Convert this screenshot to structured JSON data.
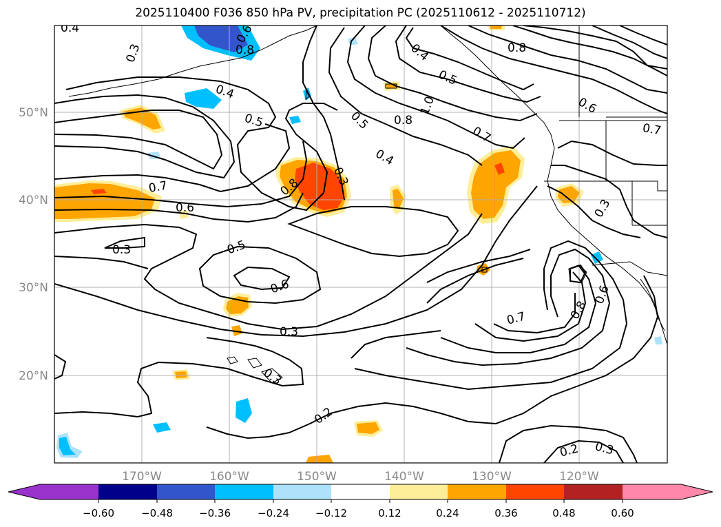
{
  "title": "2025110400 F036 850 hPa PV, precipitation PC (2025110612 - 2025110712)",
  "colors": {
    "gridline": "#b0b0b0",
    "contour": "#000000",
    "tick_label": "#888888"
  },
  "lat_labels": [
    "50°N",
    "40°N",
    "30°N",
    "20°N"
  ],
  "lon_labels": [
    "170°W",
    "160°W",
    "150°W",
    "140°W",
    "130°W",
    "120°W"
  ],
  "colorbar": {
    "colors": [
      "#9933cc",
      "#00008b",
      "#3355cc",
      "#00bfff",
      "#aee2fb",
      "#ffffff",
      "#ffee99",
      "#ffa500",
      "#ff4500",
      "#b22222",
      "#ff88aa"
    ],
    "tick_labels": [
      "−0.60",
      "−0.48",
      "−0.36",
      "−0.24",
      "−0.12",
      "0.12",
      "0.24",
      "0.36",
      "0.48",
      "0.60"
    ]
  },
  "contour_labels": [
    "0.4",
    "0.3",
    "0.6",
    "0.8",
    "0.4",
    "0.5",
    "1.0",
    "0.5",
    "0.8",
    "0.7",
    "0.4",
    "0.4",
    "0.5",
    "0.8",
    "0.6",
    "0.7",
    "0.3",
    "0.8",
    "0.7",
    "0.6",
    "0.3",
    "0.5",
    "0.6",
    "0.3",
    "0.3",
    "0.2",
    "0.7",
    "0.8",
    "0.6",
    "0.3",
    "0.2",
    "0.3"
  ]
}
